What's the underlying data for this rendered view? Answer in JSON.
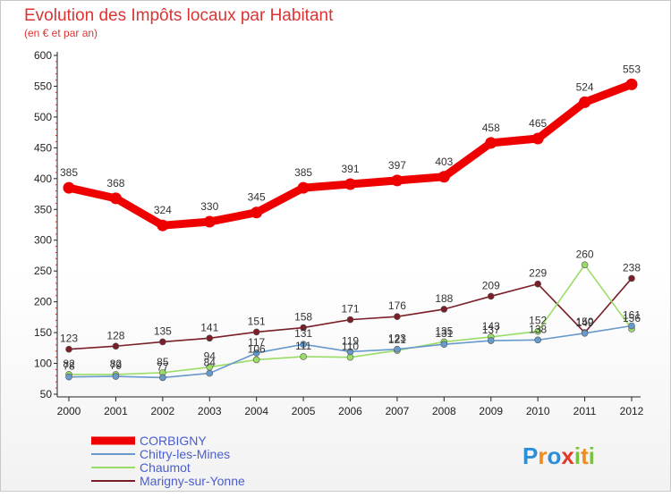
{
  "chart_data": {
    "type": "line",
    "title": "Evolution des Impôts locaux par Habitant",
    "subtitle": "(en € et par an)",
    "xlabel": "",
    "ylabel": "",
    "ylim": [
      50,
      600
    ],
    "yticks": [
      50,
      100,
      150,
      200,
      250,
      300,
      350,
      400,
      450,
      500,
      550,
      600
    ],
    "x": [
      "2000",
      "2001",
      "2002",
      "2003",
      "2004",
      "2005",
      "2006",
      "2007",
      "2008",
      "2009",
      "2010",
      "2011",
      "2012"
    ],
    "grid": false,
    "legend_position": "bottom-left",
    "series": [
      {
        "name": "Marigny-sur-Yonne",
        "color": "#7a1e28",
        "values": [
          123,
          128,
          135,
          141,
          151,
          158,
          171,
          176,
          188,
          209,
          229,
          150,
          238
        ],
        "show_labels": true
      },
      {
        "name": "Chaumot",
        "color": "#99dd66",
        "values": [
          82,
          82,
          85,
          94,
          106,
          111,
          110,
          121,
          135,
          143,
          152,
          260,
          156
        ],
        "show_labels": true
      },
      {
        "name": "Chitry-les-Mines",
        "color": "#6699cc",
        "values": [
          78,
          79,
          77,
          84,
          117,
          131,
          119,
          123,
          131,
          137,
          138,
          149,
          161
        ],
        "show_labels": true
      },
      {
        "name": "CORBIGNY",
        "color": "#ee0000",
        "values": [
          385,
          368,
          324,
          330,
          345,
          385,
          391,
          397,
          403,
          458,
          465,
          524,
          553
        ],
        "show_labels": true
      }
    ],
    "legend": [
      "CORBIGNY",
      "Chitry-les-Mines",
      "Chaumot",
      "Marigny-sur-Yonne"
    ]
  },
  "logo": {
    "text": "Proxiti",
    "letters": [
      "P",
      "r",
      "o",
      "x",
      "i",
      "t",
      "i"
    ]
  }
}
